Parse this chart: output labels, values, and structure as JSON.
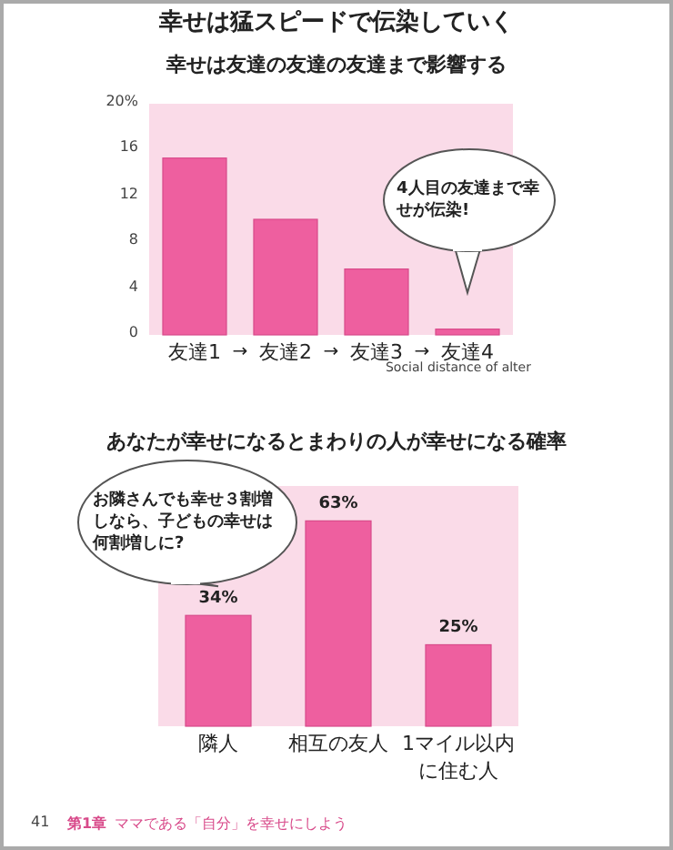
{
  "chart_data": [
    {
      "type": "bar",
      "title": "幸せは猛スピードで伝染していく",
      "subtitle": "幸せは友達の友達の友達まで影響する",
      "categories": [
        "友達1",
        "友達2",
        "友達3",
        "友達4"
      ],
      "values": [
        15.3,
        10.0,
        5.7,
        0.5
      ],
      "color": "#ee5f9f",
      "ylim": [
        0,
        20
      ],
      "yticks": [
        0,
        4,
        8,
        12,
        16,
        {
          "value": 20,
          "label": "20%"
        }
      ],
      "xlabel": "Social distance of alter",
      "annotations": [
        "→",
        "→",
        "→",
        "4人目の友達まで幸せが伝染!"
      ]
    },
    {
      "type": "bar",
      "title": "あなたが幸せになるとまわりの人が幸せになる確率",
      "categories": [
        "隣人",
        "相互の友人",
        "1マイル以内に住む人"
      ],
      "values": [
        34,
        63,
        25
      ],
      "color": "#ee5f9f",
      "value_labels": [
        "34%",
        "63%",
        "25%"
      ],
      "annotations": [
        "お隣さんでも幸せ３割増しなら、子どもの幸せは何割増しに?",
        "41",
        "第1章",
        "ママである「自分」を幸せにしよう"
      ]
    }
  ]
}
